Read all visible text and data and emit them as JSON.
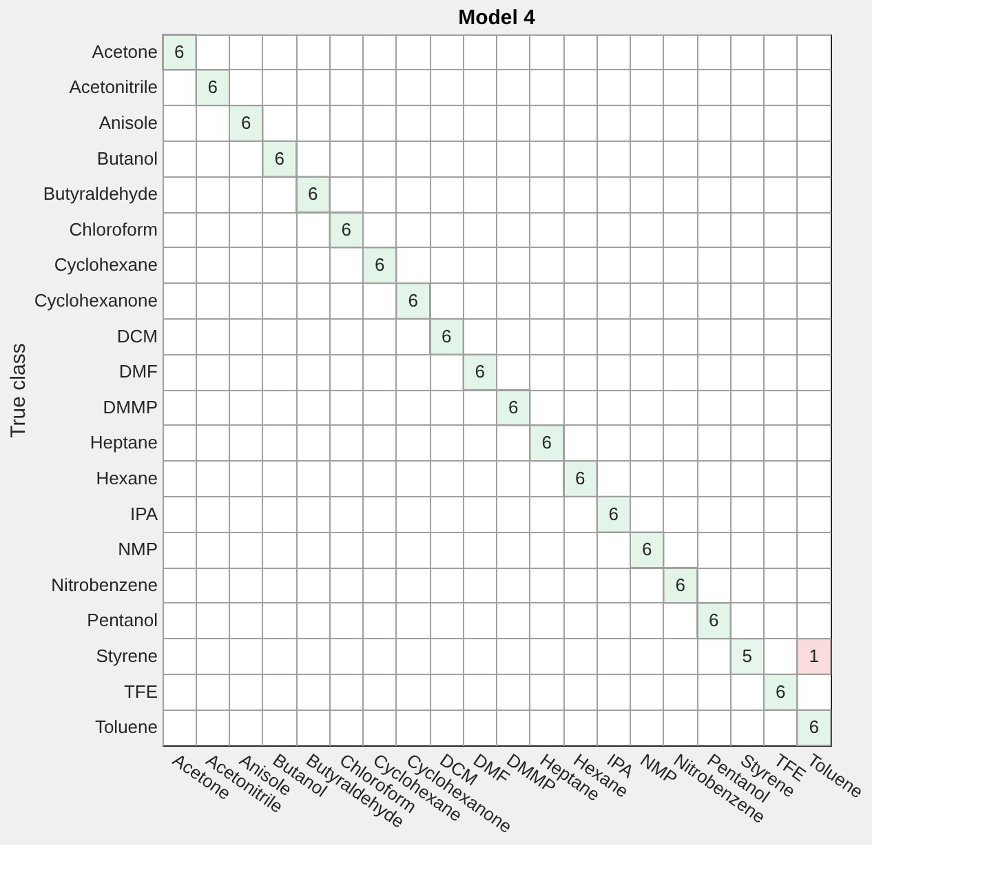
{
  "chart_data": {
    "type": "heatmap",
    "title": "Model 4",
    "ylabel": "True class",
    "grid": true,
    "data_labels": true,
    "categories": [
      "Acetone",
      "Acetonitrile",
      "Anisole",
      "Butanol",
      "Butyraldehyde",
      "Chloroform",
      "Cyclohexane",
      "Cyclohexanone",
      "DCM",
      "DMF",
      "DMMP",
      "Heptane",
      "Hexane",
      "IPA",
      "NMP",
      "Nitrobenzene",
      "Pentanol",
      "Styrene",
      "TFE",
      "Toluene"
    ],
    "y_categories": [
      "Acetone",
      "Acetonitrile",
      "Anisole",
      "Butanol",
      "Butyraldehyde",
      "Chloroform",
      "Cyclohexane",
      "Cyclohexanone",
      "DCM",
      "DMF",
      "DMMP",
      "Heptane",
      "Hexane",
      "IPA",
      "NMP",
      "Nitrobenzene",
      "Pentanol",
      "Styrene",
      "TFE",
      "Toluene"
    ],
    "cells": [
      [
        6,
        null,
        null,
        null,
        null,
        null,
        null,
        null,
        null,
        null,
        null,
        null,
        null,
        null,
        null,
        null,
        null,
        null,
        null,
        null
      ],
      [
        null,
        6,
        null,
        null,
        null,
        null,
        null,
        null,
        null,
        null,
        null,
        null,
        null,
        null,
        null,
        null,
        null,
        null,
        null,
        null
      ],
      [
        null,
        null,
        6,
        null,
        null,
        null,
        null,
        null,
        null,
        null,
        null,
        null,
        null,
        null,
        null,
        null,
        null,
        null,
        null,
        null
      ],
      [
        null,
        null,
        null,
        6,
        null,
        null,
        null,
        null,
        null,
        null,
        null,
        null,
        null,
        null,
        null,
        null,
        null,
        null,
        null,
        null
      ],
      [
        null,
        null,
        null,
        null,
        6,
        null,
        null,
        null,
        null,
        null,
        null,
        null,
        null,
        null,
        null,
        null,
        null,
        null,
        null,
        null
      ],
      [
        null,
        null,
        null,
        null,
        null,
        6,
        null,
        null,
        null,
        null,
        null,
        null,
        null,
        null,
        null,
        null,
        null,
        null,
        null,
        null
      ],
      [
        null,
        null,
        null,
        null,
        null,
        null,
        6,
        null,
        null,
        null,
        null,
        null,
        null,
        null,
        null,
        null,
        null,
        null,
        null,
        null
      ],
      [
        null,
        null,
        null,
        null,
        null,
        null,
        null,
        6,
        null,
        null,
        null,
        null,
        null,
        null,
        null,
        null,
        null,
        null,
        null,
        null
      ],
      [
        null,
        null,
        null,
        null,
        null,
        null,
        null,
        null,
        6,
        null,
        null,
        null,
        null,
        null,
        null,
        null,
        null,
        null,
        null,
        null
      ],
      [
        null,
        null,
        null,
        null,
        null,
        null,
        null,
        null,
        null,
        6,
        null,
        null,
        null,
        null,
        null,
        null,
        null,
        null,
        null,
        null
      ],
      [
        null,
        null,
        null,
        null,
        null,
        null,
        null,
        null,
        null,
        null,
        6,
        null,
        null,
        null,
        null,
        null,
        null,
        null,
        null,
        null
      ],
      [
        null,
        null,
        null,
        null,
        null,
        null,
        null,
        null,
        null,
        null,
        null,
        6,
        null,
        null,
        null,
        null,
        null,
        null,
        null,
        null
      ],
      [
        null,
        null,
        null,
        null,
        null,
        null,
        null,
        null,
        null,
        null,
        null,
        null,
        6,
        null,
        null,
        null,
        null,
        null,
        null,
        null
      ],
      [
        null,
        null,
        null,
        null,
        null,
        null,
        null,
        null,
        null,
        null,
        null,
        null,
        null,
        6,
        null,
        null,
        null,
        null,
        null,
        null
      ],
      [
        null,
        null,
        null,
        null,
        null,
        null,
        null,
        null,
        null,
        null,
        null,
        null,
        null,
        null,
        6,
        null,
        null,
        null,
        null,
        null
      ],
      [
        null,
        null,
        null,
        null,
        null,
        null,
        null,
        null,
        null,
        null,
        null,
        null,
        null,
        null,
        null,
        6,
        null,
        null,
        null,
        null
      ],
      [
        null,
        null,
        null,
        null,
        null,
        null,
        null,
        null,
        null,
        null,
        null,
        null,
        null,
        null,
        null,
        null,
        6,
        null,
        null,
        null
      ],
      [
        null,
        null,
        null,
        null,
        null,
        null,
        null,
        null,
        null,
        null,
        null,
        null,
        null,
        null,
        null,
        null,
        null,
        5,
        null,
        1
      ],
      [
        null,
        null,
        null,
        null,
        null,
        null,
        null,
        null,
        null,
        null,
        null,
        null,
        null,
        null,
        null,
        null,
        null,
        null,
        6,
        null
      ],
      [
        null,
        null,
        null,
        null,
        null,
        null,
        null,
        null,
        null,
        null,
        null,
        null,
        null,
        null,
        null,
        null,
        null,
        null,
        null,
        6
      ]
    ],
    "colors": [
      [
        "#e3f4e8",
        null,
        null,
        null,
        null,
        null,
        null,
        null,
        null,
        null,
        null,
        null,
        null,
        null,
        null,
        null,
        null,
        null,
        null,
        null
      ],
      [
        null,
        "#e3f4e8",
        null,
        null,
        null,
        null,
        null,
        null,
        null,
        null,
        null,
        null,
        null,
        null,
        null,
        null,
        null,
        null,
        null,
        null
      ],
      [
        null,
        null,
        "#e3f4e8",
        null,
        null,
        null,
        null,
        null,
        null,
        null,
        null,
        null,
        null,
        null,
        null,
        null,
        null,
        null,
        null,
        null
      ],
      [
        null,
        null,
        null,
        "#e3f4e8",
        null,
        null,
        null,
        null,
        null,
        null,
        null,
        null,
        null,
        null,
        null,
        null,
        null,
        null,
        null,
        null
      ],
      [
        null,
        null,
        null,
        null,
        "#e3f4e8",
        null,
        null,
        null,
        null,
        null,
        null,
        null,
        null,
        null,
        null,
        null,
        null,
        null,
        null,
        null
      ],
      [
        null,
        null,
        null,
        null,
        null,
        "#e3f4e8",
        null,
        null,
        null,
        null,
        null,
        null,
        null,
        null,
        null,
        null,
        null,
        null,
        null,
        null
      ],
      [
        null,
        null,
        null,
        null,
        null,
        null,
        "#e3f4e8",
        null,
        null,
        null,
        null,
        null,
        null,
        null,
        null,
        null,
        null,
        null,
        null,
        null
      ],
      [
        null,
        null,
        null,
        null,
        null,
        null,
        null,
        "#e3f4e8",
        null,
        null,
        null,
        null,
        null,
        null,
        null,
        null,
        null,
        null,
        null,
        null
      ],
      [
        null,
        null,
        null,
        null,
        null,
        null,
        null,
        null,
        "#e3f4e8",
        null,
        null,
        null,
        null,
        null,
        null,
        null,
        null,
        null,
        null,
        null
      ],
      [
        null,
        null,
        null,
        null,
        null,
        null,
        null,
        null,
        null,
        "#e3f4e8",
        null,
        null,
        null,
        null,
        null,
        null,
        null,
        null,
        null,
        null
      ],
      [
        null,
        null,
        null,
        null,
        null,
        null,
        null,
        null,
        null,
        null,
        "#e3f4e8",
        null,
        null,
        null,
        null,
        null,
        null,
        null,
        null,
        null
      ],
      [
        null,
        null,
        null,
        null,
        null,
        null,
        null,
        null,
        null,
        null,
        null,
        "#e3f4e8",
        null,
        null,
        null,
        null,
        null,
        null,
        null,
        null
      ],
      [
        null,
        null,
        null,
        null,
        null,
        null,
        null,
        null,
        null,
        null,
        null,
        null,
        "#e3f4e8",
        null,
        null,
        null,
        null,
        null,
        null,
        null
      ],
      [
        null,
        null,
        null,
        null,
        null,
        null,
        null,
        null,
        null,
        null,
        null,
        null,
        null,
        "#e3f4e8",
        null,
        null,
        null,
        null,
        null,
        null
      ],
      [
        null,
        null,
        null,
        null,
        null,
        null,
        null,
        null,
        null,
        null,
        null,
        null,
        null,
        null,
        "#e3f4e8",
        null,
        null,
        null,
        null,
        null
      ],
      [
        null,
        null,
        null,
        null,
        null,
        null,
        null,
        null,
        null,
        null,
        null,
        null,
        null,
        null,
        null,
        "#e3f4e8",
        null,
        null,
        null,
        null
      ],
      [
        null,
        null,
        null,
        null,
        null,
        null,
        null,
        null,
        null,
        null,
        null,
        null,
        null,
        null,
        null,
        null,
        "#e3f4e8",
        null,
        null,
        null
      ],
      [
        null,
        null,
        null,
        null,
        null,
        null,
        null,
        null,
        null,
        null,
        null,
        null,
        null,
        null,
        null,
        null,
        null,
        "#e8f5ec",
        null,
        "#fbdcdc"
      ],
      [
        null,
        null,
        null,
        null,
        null,
        null,
        null,
        null,
        null,
        null,
        null,
        null,
        null,
        null,
        null,
        null,
        null,
        null,
        "#e3f4e8",
        null
      ],
      [
        null,
        null,
        null,
        null,
        null,
        null,
        null,
        null,
        null,
        null,
        null,
        null,
        null,
        null,
        null,
        null,
        null,
        null,
        null,
        "#e3f4e8"
      ]
    ]
  }
}
